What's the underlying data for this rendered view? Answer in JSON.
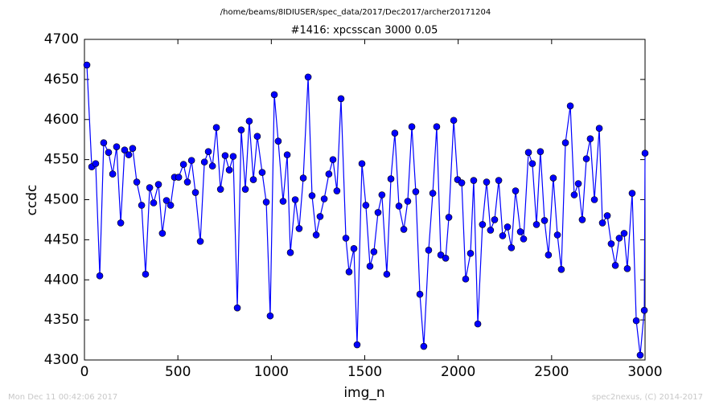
{
  "chart_data": {
    "type": "line",
    "title": "/home/beams/8IDIUSER/spec_data/2017/Dec2017/archer20171204",
    "subtitle": "#1416: xpcsscan 3000 0.05",
    "x_label": "img_n",
    "y_label": "ccdc",
    "footer_left": "Mon Dec 11 00:42:06 2017",
    "footer_right": "spec2nexus, (C) 2014-2017",
    "xlim": [
      0,
      3000
    ],
    "xticks": [
      0,
      500,
      1000,
      1500,
      2000,
      2500,
      3000
    ],
    "ylim": [
      4300,
      4700
    ],
    "yticks": [
      4300,
      4350,
      4400,
      4450,
      4500,
      4550,
      4600,
      4650,
      4700
    ],
    "grid": false,
    "series": [
      {
        "name": "ccdc",
        "color": "#0000ff",
        "x": [
          13,
          39,
          60,
          82,
          103,
          129,
          151,
          172,
          194,
          215,
          237,
          258,
          280,
          306,
          327,
          349,
          370,
          396,
          417,
          439,
          461,
          482,
          504,
          530,
          551,
          573,
          594,
          620,
          642,
          663,
          685,
          706,
          728,
          753,
          775,
          796,
          818,
          839,
          861,
          882,
          904,
          925,
          951,
          973,
          994,
          1016,
          1037,
          1063,
          1085,
          1102,
          1128,
          1149,
          1171,
          1197,
          1218,
          1240,
          1261,
          1283,
          1308,
          1330,
          1351,
          1373,
          1399,
          1416,
          1442,
          1459,
          1485,
          1506,
          1528,
          1549,
          1571,
          1592,
          1618,
          1640,
          1661,
          1683,
          1709,
          1730,
          1752,
          1773,
          1795,
          1816,
          1842,
          1864,
          1885,
          1907,
          1933,
          1950,
          1976,
          1997,
          2019,
          2040,
          2066,
          2083,
          2105,
          2130,
          2152,
          2173,
          2195,
          2217,
          2238,
          2264,
          2285,
          2307,
          2333,
          2350,
          2376,
          2397,
          2419,
          2440,
          2462,
          2483,
          2509,
          2531,
          2552,
          2574,
          2600,
          2621,
          2643,
          2664,
          2686,
          2707,
          2729,
          2755,
          2772,
          2798,
          2819,
          2841,
          2862,
          2888,
          2905,
          2931,
          2953,
          2974,
          2996,
          3000
        ],
        "values": [
          4668,
          4541,
          4545,
          4405,
          4571,
          4559,
          4532,
          4566,
          4471,
          4562,
          4556,
          4564,
          4522,
          4493,
          4407,
          4515,
          4496,
          4519,
          4458,
          4499,
          4493,
          4528,
          4528,
          4544,
          4522,
          4549,
          4509,
          4448,
          4547,
          4560,
          4542,
          4590,
          4513,
          4555,
          4537,
          4554,
          4365,
          4587,
          4513,
          4598,
          4525,
          4579,
          4534,
          4497,
          4355,
          4631,
          4573,
          4498,
          4556,
          4434,
          4500,
          4464,
          4527,
          4653,
          4505,
          4456,
          4479,
          4501,
          4532,
          4550,
          4511,
          4626,
          4452,
          4410,
          4439,
          4319,
          4545,
          4493,
          4417,
          4435,
          4484,
          4506,
          4407,
          4526,
          4583,
          4492,
          4463,
          4498,
          4591,
          4510,
          4382,
          4317,
          4437,
          4508,
          4591,
          4431,
          4427,
          4478,
          4599,
          4525,
          4521,
          4401,
          4433,
          4524,
          4345,
          4469,
          4522,
          4462,
          4475,
          4524,
          4455,
          4466,
          4440,
          4511,
          4460,
          4451,
          4559,
          4545,
          4469,
          4560,
          4474,
          4431,
          4527,
          4456,
          4413,
          4571,
          4617,
          4506,
          4520,
          4475,
          4551,
          4576,
          4500,
          4589,
          4471,
          4480,
          4445,
          4418,
          4452,
          4458,
          4414,
          4508,
          4349,
          4306,
          4362,
          4558
        ]
      }
    ]
  }
}
